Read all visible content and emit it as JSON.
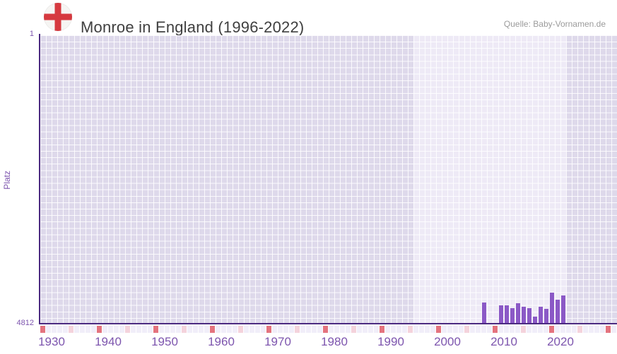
{
  "header": {
    "title": "Monroe in England (1996-2022)",
    "source": "Quelle: Baby-Vornamen.de",
    "flag": "england-flag"
  },
  "chart_data": {
    "type": "bar",
    "title": "Monroe in England (1996-2022)",
    "ylabel": "Platz",
    "xlabel": "",
    "y_axis": {
      "top_label": "1",
      "bottom_label": "4812",
      "min": 1,
      "max": 4812,
      "inverted": true
    },
    "x_axis": {
      "first_year": 1930,
      "last_year": 2031,
      "tick_labels": [
        "1930",
        "1940",
        "1950",
        "1960",
        "1970",
        "1980",
        "1990",
        "2000",
        "2010",
        "2020"
      ],
      "tick_years": [
        1930,
        1940,
        1950,
        1960,
        1970,
        1980,
        1990,
        2000,
        2010,
        2020
      ]
    },
    "highlight_range": {
      "from": 1996,
      "to": 2022
    },
    "series": [
      {
        "name": "Platz",
        "points": [
          {
            "year": 2008,
            "platz": 4446
          },
          {
            "year": 2011,
            "platz": 4497
          },
          {
            "year": 2012,
            "platz": 4494
          },
          {
            "year": 2013,
            "platz": 4536
          },
          {
            "year": 2014,
            "platz": 4458
          },
          {
            "year": 2015,
            "platz": 4516
          },
          {
            "year": 2016,
            "platz": 4544
          },
          {
            "year": 2017,
            "platz": 4681
          },
          {
            "year": 2018,
            "platz": 4516
          },
          {
            "year": 2019,
            "platz": 4556
          },
          {
            "year": 2020,
            "platz": 4289
          },
          {
            "year": 2021,
            "platz": 4395
          },
          {
            "year": 2022,
            "platz": 4328
          }
        ]
      }
    ],
    "grid": true,
    "legend": false,
    "year_strip": {
      "decade_rule": "red cell every year divisible by 10",
      "half_decade_rule": "pink cell every year ending in 5"
    }
  },
  "colors": {
    "bar": "#8b59c6",
    "axis": "#4b2a80",
    "tick_text": "#7d55ae",
    "band_inside_range": "#eeeaf6",
    "band_outside_range": "#ded9eb",
    "grid_line": "rgba(255,255,255,0.85)",
    "strip_decade": "#e4737e",
    "strip_half_decade": "#f4d3dc",
    "strip_base": "#f1eef9",
    "title_text": "#3f3f3f",
    "source_text": "#9b9b9b",
    "flag_cross": "#d6393f",
    "flag_field": "#f6f5f3"
  }
}
